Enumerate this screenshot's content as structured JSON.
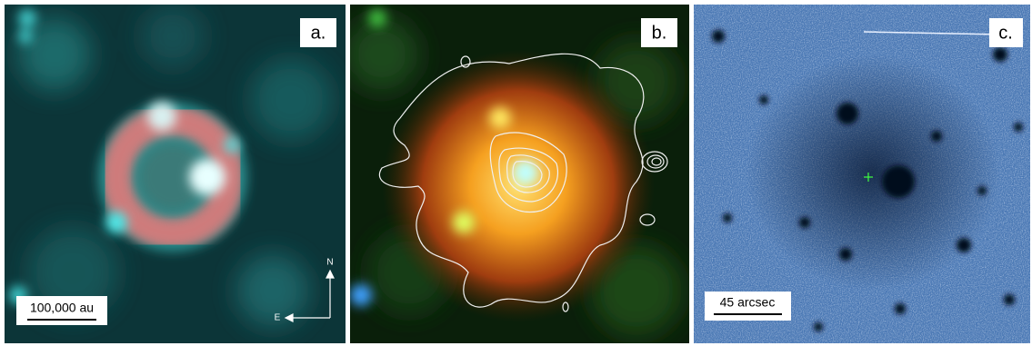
{
  "panels": [
    {
      "label": "a.",
      "scale_bar": "100,000 au",
      "compass": {
        "north": "N",
        "east": "E"
      }
    },
    {
      "label": "b."
    },
    {
      "label": "c.",
      "scale_bar": "45 arcsec"
    }
  ]
}
